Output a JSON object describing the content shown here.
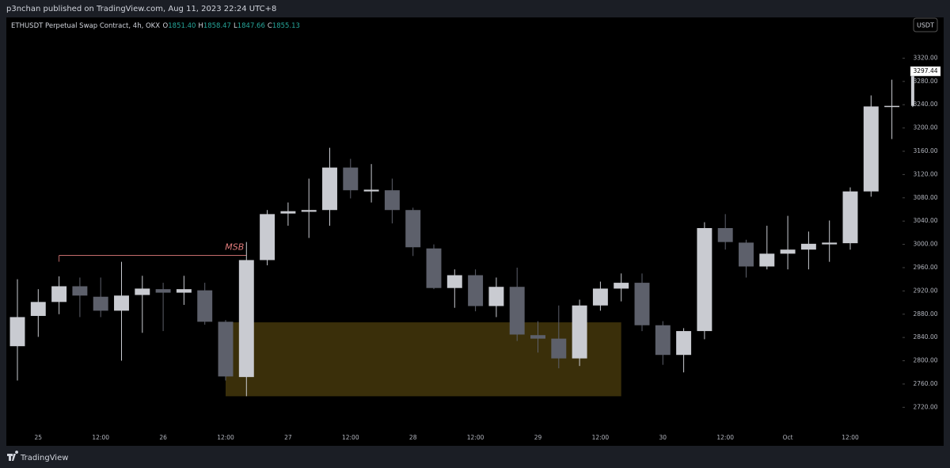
{
  "header": {
    "publisher": "p3nchan published on TradingView.com, Aug 11, 2023 22:24 UTC+8",
    "footer": "TradingView"
  },
  "chart_data": {
    "type": "candlestick",
    "title": "ETHUSDT Perpetual Swap Contract, 4h, OKX",
    "ohlc_legend": [
      {
        "name": "O",
        "value": 1851.4,
        "label": "1851.40"
      },
      {
        "name": "H",
        "value": 1858.47,
        "label": "1858.47"
      },
      {
        "name": "L",
        "value": 1847.66,
        "label": "1847.66"
      },
      {
        "name": "C",
        "value": 1855.13,
        "label": "1855.13"
      }
    ],
    "currency": "USDT",
    "up_color": "#c9cbd1",
    "down_color": "#5d606b",
    "legend_value_color": "#26a69a",
    "categories": [
      null,
      "25",
      null,
      null,
      "12:00",
      null,
      null,
      "26",
      null,
      null,
      "12:00",
      null,
      null,
      "27",
      null,
      null,
      "12:00",
      null,
      null,
      "28",
      null,
      null,
      "12:00",
      null,
      null,
      "29",
      null,
      null,
      "12:00",
      null,
      null,
      "30",
      null,
      null,
      "12:00",
      null,
      null,
      "Oct",
      null,
      null,
      "12:00",
      null,
      null,
      null
    ],
    "open": [
      2825,
      2877,
      2901,
      2928,
      2910,
      2886,
      2913,
      2923,
      2917,
      2921,
      2867,
      2772,
      2973,
      3053,
      3056,
      3059,
      3132,
      3091,
      3093,
      3059,
      2993,
      2925,
      2947,
      2894,
      2927,
      2844,
      2838,
      2804,
      2895,
      2924,
      2934,
      2861,
      2810,
      2851,
      3028,
      3003,
      2962,
      2984,
      2991,
      3000,
      3002,
      3091,
      3236,
      3238
    ],
    "high": [
      2940,
      2923,
      2945,
      2943,
      2943,
      2970,
      2946,
      2934,
      2946,
      2934,
      2870,
      3004,
      3059,
      3072,
      3113,
      3166,
      3147,
      3138,
      3113,
      3063,
      3000,
      2957,
      2957,
      2943,
      2960,
      2868,
      2895,
      2905,
      2936,
      2950,
      2950,
      2868,
      2856,
      3038,
      3052,
      3008,
      3032,
      3049,
      3022,
      3041,
      3098,
      3256,
      3283,
      3297.44
    ],
    "low": [
      2766,
      2841,
      2880,
      2875,
      2875,
      2800,
      2848,
      2851,
      2896,
      2862,
      2766,
      2739,
      2964,
      3032,
      3011,
      3032,
      3079,
      3072,
      3036,
      2980,
      2923,
      2891,
      2885,
      2875,
      2834,
      2814,
      2787,
      2791,
      2886,
      2902,
      2851,
      2793,
      2780,
      2837,
      2991,
      2943,
      2957,
      2957,
      2957,
      2970,
      2991,
      3082,
      3181,
      3236
    ],
    "close": [
      2875,
      2901,
      2928,
      2912,
      2886,
      2912,
      2924,
      2917,
      2923,
      2867,
      2773,
      2973,
      3052,
      3057,
      3059,
      3132,
      3093,
      3094,
      3059,
      2995,
      2925,
      2947,
      2894,
      2927,
      2845,
      2838,
      2804,
      2895,
      2924,
      2934,
      2861,
      2810,
      2851,
      3028,
      3004,
      2962,
      2984,
      2991,
      3001,
      3003,
      3091,
      3237,
      3238,
      3297.44
    ],
    "ylim": [
      2681,
      3390
    ],
    "yticks": [
      {
        "value": 2720,
        "label": "2720.00"
      },
      {
        "value": 2760,
        "label": "2760.00"
      },
      {
        "value": 2800,
        "label": "2800.00"
      },
      {
        "value": 2840,
        "label": "2840.00"
      },
      {
        "value": 2880,
        "label": "2880.00"
      },
      {
        "value": 2920,
        "label": "2920.00"
      },
      {
        "value": 2960,
        "label": "2960.00"
      },
      {
        "value": 3000,
        "label": "3000.00"
      },
      {
        "value": 3040,
        "label": "3040.00"
      },
      {
        "value": 3080,
        "label": "3080.00"
      },
      {
        "value": 3120,
        "label": "3120.00"
      },
      {
        "value": 3160,
        "label": "3160.00"
      },
      {
        "value": 3200,
        "label": "3200.00"
      },
      {
        "value": 3240,
        "label": "3240.00"
      },
      {
        "value": 3280,
        "label": "3280.00"
      },
      {
        "value": 3320,
        "label": "3320.00"
      }
    ],
    "last_price": 3297.44,
    "zone": {
      "ylim": [
        2739,
        2866
      ],
      "span": [
        10,
        29
      ],
      "color": "#3a2f0a"
    },
    "msb": {
      "text": "MSB",
      "value": 2981,
      "span": [
        2,
        11
      ],
      "color": "#e07b7b"
    }
  }
}
